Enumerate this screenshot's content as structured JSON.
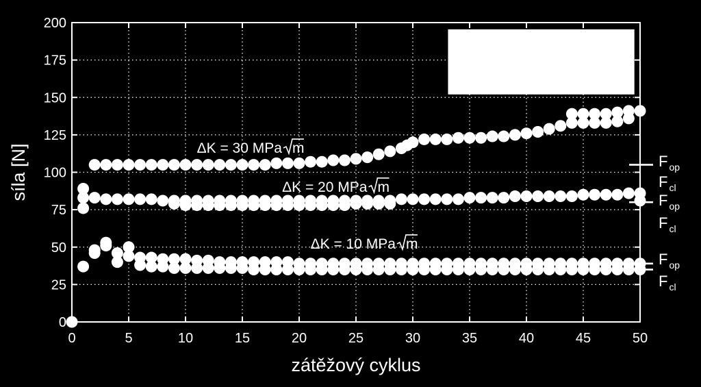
{
  "chart_data": {
    "type": "scatter",
    "xlabel": "zátěžový cyklus",
    "ylabel": "síla [N]",
    "xlim": [
      0,
      50
    ],
    "ylim": [
      0,
      200
    ],
    "xticks": [
      0,
      5,
      10,
      15,
      20,
      25,
      30,
      35,
      40,
      45,
      50
    ],
    "yticks": [
      0,
      25,
      50,
      75,
      100,
      125,
      150,
      175,
      200
    ],
    "grid": "dotted",
    "legend": "top-right (blank white box)",
    "marker_color": "#ffffff",
    "background_color": "#000000",
    "annotations": [
      {
        "prefix": "ΔK = 30 MPa",
        "sqrt": "m",
        "x": 11,
        "y": 113
      },
      {
        "prefix": "ΔK = 20 MPa",
        "sqrt": "m",
        "x": 18.5,
        "y": 87
      },
      {
        "prefix": "ΔK = 10 MPa",
        "sqrt": "m",
        "x": 21,
        "y": 49
      }
    ],
    "right_labels": [
      {
        "text": "F",
        "sub": "op",
        "level": 105
      },
      {
        "text": "F",
        "sub": "cl",
        "level": 80
      },
      {
        "text": "F",
        "sub": "op",
        "level": 39
      },
      {
        "text": "F",
        "sub": "cl",
        "level": 35
      }
    ],
    "series": [
      {
        "x": [
          2,
          3,
          4,
          5,
          6,
          7,
          8,
          9,
          10,
          11,
          12,
          13,
          14,
          15,
          16,
          17,
          18,
          19,
          20,
          21,
          22,
          23,
          24,
          25,
          26,
          27,
          28,
          29,
          29.5,
          30,
          31,
          32,
          33,
          34,
          35,
          36,
          37,
          38,
          39,
          40,
          41,
          42,
          43,
          44,
          45,
          46,
          47,
          48,
          49,
          50
        ],
        "y": [
          105,
          105,
          105,
          105,
          105,
          105,
          105,
          105,
          105,
          105,
          105,
          105,
          105,
          105,
          105,
          105,
          106,
          106,
          106,
          107,
          107,
          108,
          108,
          109,
          110,
          112,
          114,
          116,
          118,
          120,
          122,
          122,
          122,
          123,
          123,
          123,
          124,
          124,
          125,
          126,
          127,
          129,
          131,
          133,
          133,
          133,
          133,
          134,
          136,
          141
        ]
      },
      {
        "x": [
          44,
          45,
          46,
          47,
          48,
          49
        ],
        "y": [
          139,
          139,
          139,
          139,
          140,
          141
        ]
      },
      {
        "x": [
          1,
          2,
          3,
          4,
          5,
          6,
          7,
          8,
          9,
          10,
          11,
          12,
          13,
          14,
          15,
          16,
          17,
          18,
          19,
          20,
          21,
          22,
          23,
          24,
          25,
          26,
          27,
          28,
          29,
          30,
          31,
          32,
          33,
          34,
          35,
          36,
          37,
          38,
          39,
          40,
          41,
          42,
          43,
          44,
          45,
          46,
          47,
          48,
          49,
          50
        ],
        "y": [
          83,
          83,
          82,
          82,
          82,
          82,
          82,
          81,
          81,
          81,
          81,
          81,
          81,
          81,
          81,
          81,
          81,
          81,
          81,
          81,
          81,
          81,
          81,
          81,
          81,
          81,
          81,
          81,
          82,
          82,
          82,
          82,
          82,
          82,
          83,
          83,
          83,
          83,
          84,
          84,
          84,
          84,
          84,
          84,
          85,
          85,
          85,
          85,
          86,
          86
        ]
      },
      {
        "x": [
          1,
          9,
          10,
          11,
          12,
          13,
          14,
          15,
          16,
          17,
          18,
          19,
          20,
          21,
          22,
          23,
          24,
          25,
          26,
          27,
          28,
          50
        ],
        "y": [
          89,
          79,
          78,
          78,
          78,
          78,
          78,
          78,
          78,
          78,
          78,
          78,
          78,
          78,
          78,
          78,
          78,
          79,
          79,
          79,
          79,
          81
        ]
      },
      {
        "x": [
          0,
          1,
          1,
          2,
          2,
          3,
          3,
          4,
          4,
          5,
          5
        ],
        "y": [
          0,
          76,
          37,
          46,
          48,
          53,
          51,
          46,
          40,
          44,
          50
        ]
      },
      {
        "x": [
          6,
          7,
          8,
          9,
          10,
          11,
          12,
          13,
          14,
          15,
          16,
          17,
          18,
          19,
          20,
          21,
          22,
          23,
          24,
          25,
          26,
          27,
          28,
          29,
          30,
          31,
          32,
          33,
          34,
          35,
          36,
          37,
          38,
          39,
          40,
          41,
          42,
          43,
          44,
          45,
          46,
          47,
          48,
          49,
          50
        ],
        "y": [
          43,
          43,
          42,
          42,
          42,
          41,
          41,
          40,
          40,
          40,
          40,
          40,
          40,
          40,
          39,
          39,
          39,
          39,
          39,
          39,
          39,
          39,
          39,
          39,
          39,
          39,
          39,
          39,
          39,
          39,
          39,
          39,
          39,
          39,
          39,
          39,
          39,
          39,
          39,
          39,
          39,
          39,
          39,
          39,
          39
        ]
      },
      {
        "x": [
          6,
          7,
          8,
          9,
          10,
          11,
          12,
          13,
          14,
          15,
          16,
          17,
          18,
          19,
          20,
          21,
          22,
          23,
          24,
          25,
          26,
          27,
          28,
          29,
          30,
          31,
          32,
          33,
          34,
          35,
          36,
          37,
          38,
          39,
          40,
          41,
          42,
          43,
          44,
          45,
          46,
          47,
          48,
          49,
          50
        ],
        "y": [
          38,
          37,
          37,
          36,
          36,
          36,
          36,
          36,
          36,
          36,
          35,
          35,
          35,
          35,
          35,
          35,
          35,
          35,
          35,
          35,
          35,
          35,
          35,
          35,
          35,
          35,
          35,
          35,
          35,
          35,
          35,
          35,
          35,
          35,
          35,
          35,
          35,
          35,
          35,
          35,
          35,
          35,
          35,
          35,
          35
        ]
      }
    ]
  }
}
